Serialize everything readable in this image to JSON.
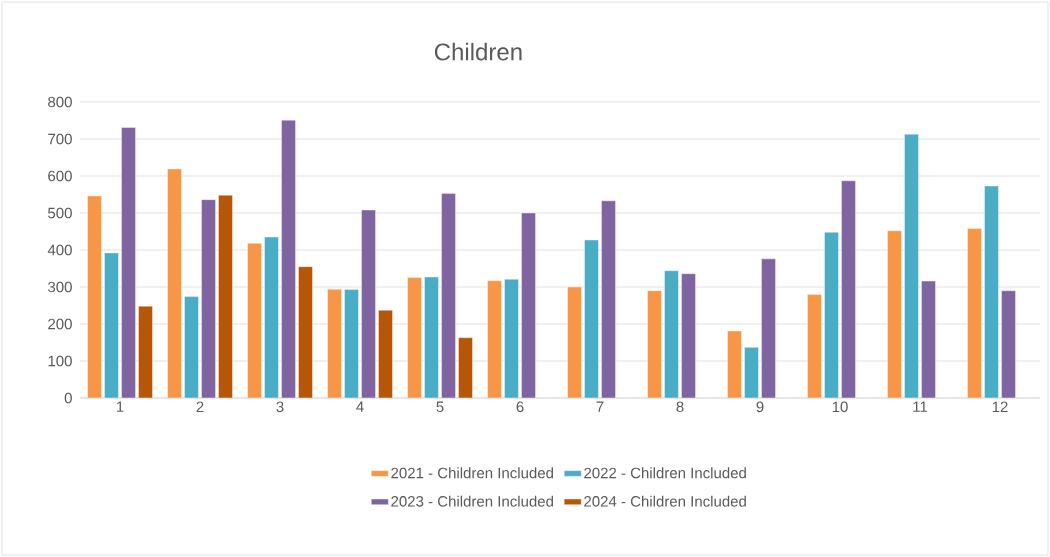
{
  "chart_data": {
    "type": "bar",
    "title": "Children",
    "categories": [
      "1",
      "2",
      "3",
      "4",
      "5",
      "6",
      "7",
      "8",
      "9",
      "10",
      "11",
      "12"
    ],
    "series": [
      {
        "name": "2021 - Children Included",
        "color": "#f79646",
        "values": [
          546,
          619,
          418,
          294,
          326,
          317,
          300,
          290,
          181,
          280,
          452,
          458
        ]
      },
      {
        "name": "2022 - Children Included",
        "color": "#4bacc6",
        "values": [
          392,
          274,
          435,
          293,
          327,
          321,
          427,
          344,
          137,
          448,
          713,
          573
        ]
      },
      {
        "name": "2023 - Children Included",
        "color": "#8064a2",
        "values": [
          731,
          536,
          751,
          508,
          553,
          500,
          533,
          336,
          376,
          587,
          316,
          290
        ]
      },
      {
        "name": "2024 - Children Included",
        "color": "#b65708",
        "values": [
          248,
          548,
          355,
          237,
          163,
          null,
          null,
          null,
          null,
          null,
          null,
          null
        ]
      }
    ],
    "ylim": [
      0,
      800
    ],
    "yticks": [
      0,
      100,
      200,
      300,
      400,
      500,
      600,
      700,
      800
    ],
    "grid": "y",
    "legend": "bottom"
  }
}
